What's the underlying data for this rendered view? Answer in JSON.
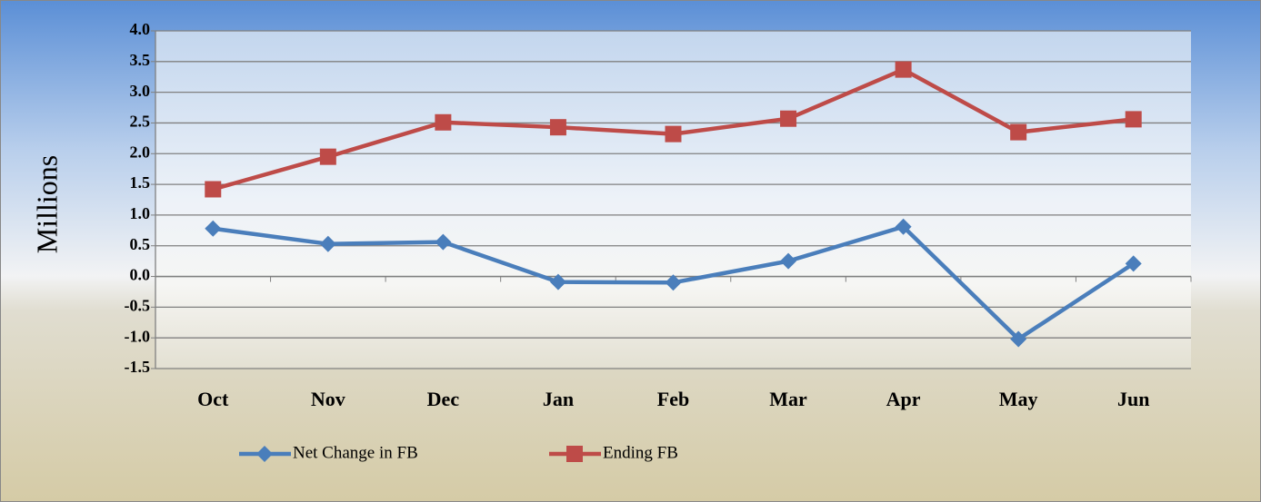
{
  "chart_data": {
    "type": "line",
    "y_label": "Millions",
    "categories": [
      "Oct",
      "Nov",
      "Dec",
      "Jan",
      "Feb",
      "Mar",
      "Apr",
      "May",
      "Jun"
    ],
    "series": [
      {
        "name": "Net Change in FB",
        "color": "#4a7ebb",
        "marker": "diamond",
        "values": [
          0.78,
          0.53,
          0.56,
          -0.09,
          -0.1,
          0.25,
          0.81,
          -1.02,
          0.21
        ]
      },
      {
        "name": "Ending FB",
        "color": "#be4b48",
        "marker": "square",
        "values": [
          1.42,
          1.95,
          2.51,
          2.43,
          2.32,
          2.57,
          3.37,
          2.35,
          2.56
        ]
      }
    ],
    "ylim": [
      -1.5,
      4
    ],
    "yticks": [
      {
        "value": -1.5,
        "label": "-1.5"
      },
      {
        "value": -1,
        "label": "-1.0"
      },
      -0.5,
      {
        "value": 0,
        "label": "0.0"
      },
      0.5,
      {
        "value": 1,
        "label": "1.0"
      },
      1.5,
      {
        "value": 2,
        "label": "2.0"
      },
      2.5,
      {
        "value": 3,
        "label": "3.0"
      },
      3.5,
      {
        "value": 4,
        "label": "4.0"
      }
    ],
    "grid": true,
    "legend": "bottom"
  }
}
